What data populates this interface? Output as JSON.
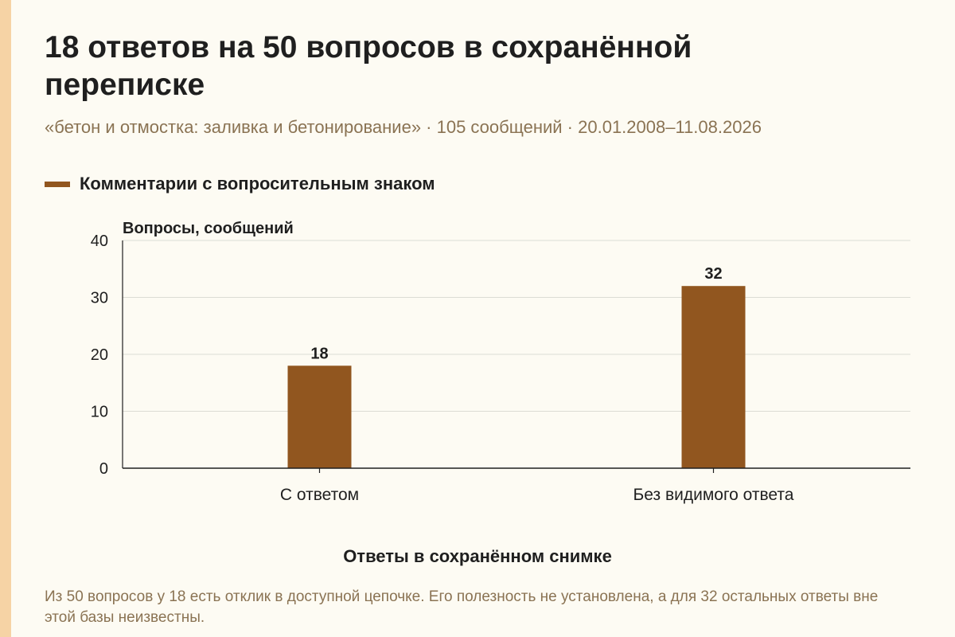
{
  "page": {
    "title": "18 ответов на 50 вопросов в сохранённой переписке",
    "subtitle": "«бетон и отмостка: заливка и бетонирование» · 105 сообщений · 20.01.2008–11.08.2026",
    "footnote": "Из 50 вопросов у 18 есть отклик в доступной цепочке. Его полезность не установлена, а для 32 остальных ответы вне этой базы неизвестны."
  },
  "colors": {
    "bar": "#91561f",
    "grid": "#dcdcd4",
    "axis": "#1f1f1f",
    "background": "#fdfbf3",
    "accent_strip": "#f6d3a5",
    "muted_text": "#8a7353"
  },
  "chart_data": {
    "type": "bar",
    "categories": [
      "С ответом",
      "Без видимого ответа"
    ],
    "series": [
      {
        "name": "Комментарии с вопросительным знаком",
        "values": [
          18,
          32
        ]
      }
    ],
    "data_labels": [
      "18",
      "32"
    ],
    "xlabel": "Ответы в сохранённом снимке",
    "ylabel": "Вопросы, сообщений",
    "ylim": [
      0,
      40
    ],
    "yticks": [
      0,
      10,
      20,
      30,
      40
    ],
    "grid": true,
    "legend_position": "top-left"
  }
}
